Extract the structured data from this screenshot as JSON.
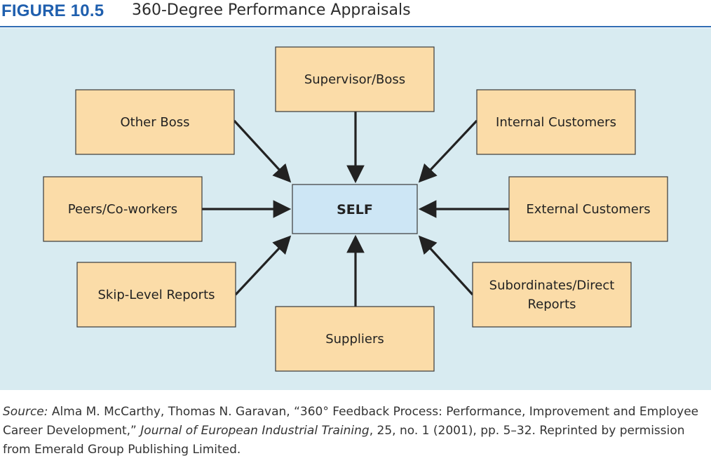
{
  "header": {
    "figure_label": "FIGURE 10.5",
    "figure_title": "360-Degree Performance Appraisals"
  },
  "colors": {
    "accent": "#1f5fae",
    "panel_background": "#d8ebf1",
    "box_fill": "#fbdca8",
    "center_fill": "#cde6f5",
    "arrow": "#222222"
  },
  "diagram": {
    "center": "SELF",
    "sources": [
      {
        "id": "supervisor-boss",
        "lines": [
          "Supervisor/Boss"
        ]
      },
      {
        "id": "other-boss",
        "lines": [
          "Other Boss"
        ]
      },
      {
        "id": "internal-customers",
        "lines": [
          "Internal Customers"
        ]
      },
      {
        "id": "peers-coworkers",
        "lines": [
          "Peers/Co-workers"
        ]
      },
      {
        "id": "external-customers",
        "lines": [
          "External Customers"
        ]
      },
      {
        "id": "skip-level-reports",
        "lines": [
          "Skip-Level Reports"
        ]
      },
      {
        "id": "subordinates-direct-reports",
        "lines": [
          "Subordinates/Direct",
          "Reports"
        ]
      },
      {
        "id": "suppliers",
        "lines": [
          "Suppliers"
        ]
      }
    ]
  },
  "source_note": {
    "label": "Source:",
    "text_1": " Alma M. McCarthy, Thomas N. Garavan, “360° Feedback Process: Performance, Improvement and Employee Career Development,” ",
    "journal": "Journal of European Industrial Training",
    "text_2": ", 25, no. 1 (2001), pp. 5–32. Reprinted by permission from Emerald Group Publishing Limited."
  }
}
